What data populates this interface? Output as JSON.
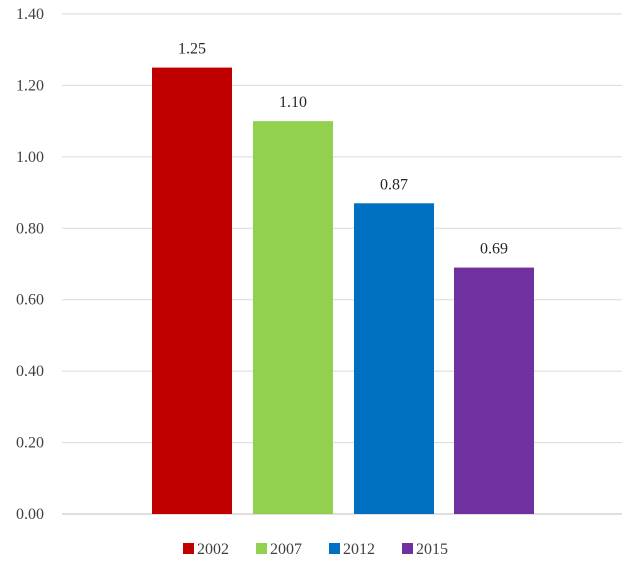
{
  "chart_data": {
    "type": "bar",
    "categories": [
      "2002",
      "2007",
      "2012",
      "2015"
    ],
    "values": [
      1.25,
      1.1,
      0.87,
      0.69
    ],
    "data_labels": [
      "1.25",
      "1.10",
      "0.87",
      "0.69"
    ],
    "colors": [
      "#c00000",
      "#92d050",
      "#0070c0",
      "#7030a0"
    ],
    "ylim": [
      0,
      1.4
    ],
    "yticks": [
      0,
      0.2,
      0.4,
      0.6,
      0.8,
      1.0,
      1.2,
      1.4
    ],
    "ytick_labels": [
      "0.00",
      "0.20",
      "0.40",
      "0.60",
      "0.80",
      "1.00",
      "1.20",
      "1.40"
    ],
    "grid": true,
    "legend": {
      "position": "bottom",
      "entries": [
        "2002",
        "2007",
        "2012",
        "2015"
      ]
    },
    "title": "",
    "xlabel": "",
    "ylabel": ""
  }
}
